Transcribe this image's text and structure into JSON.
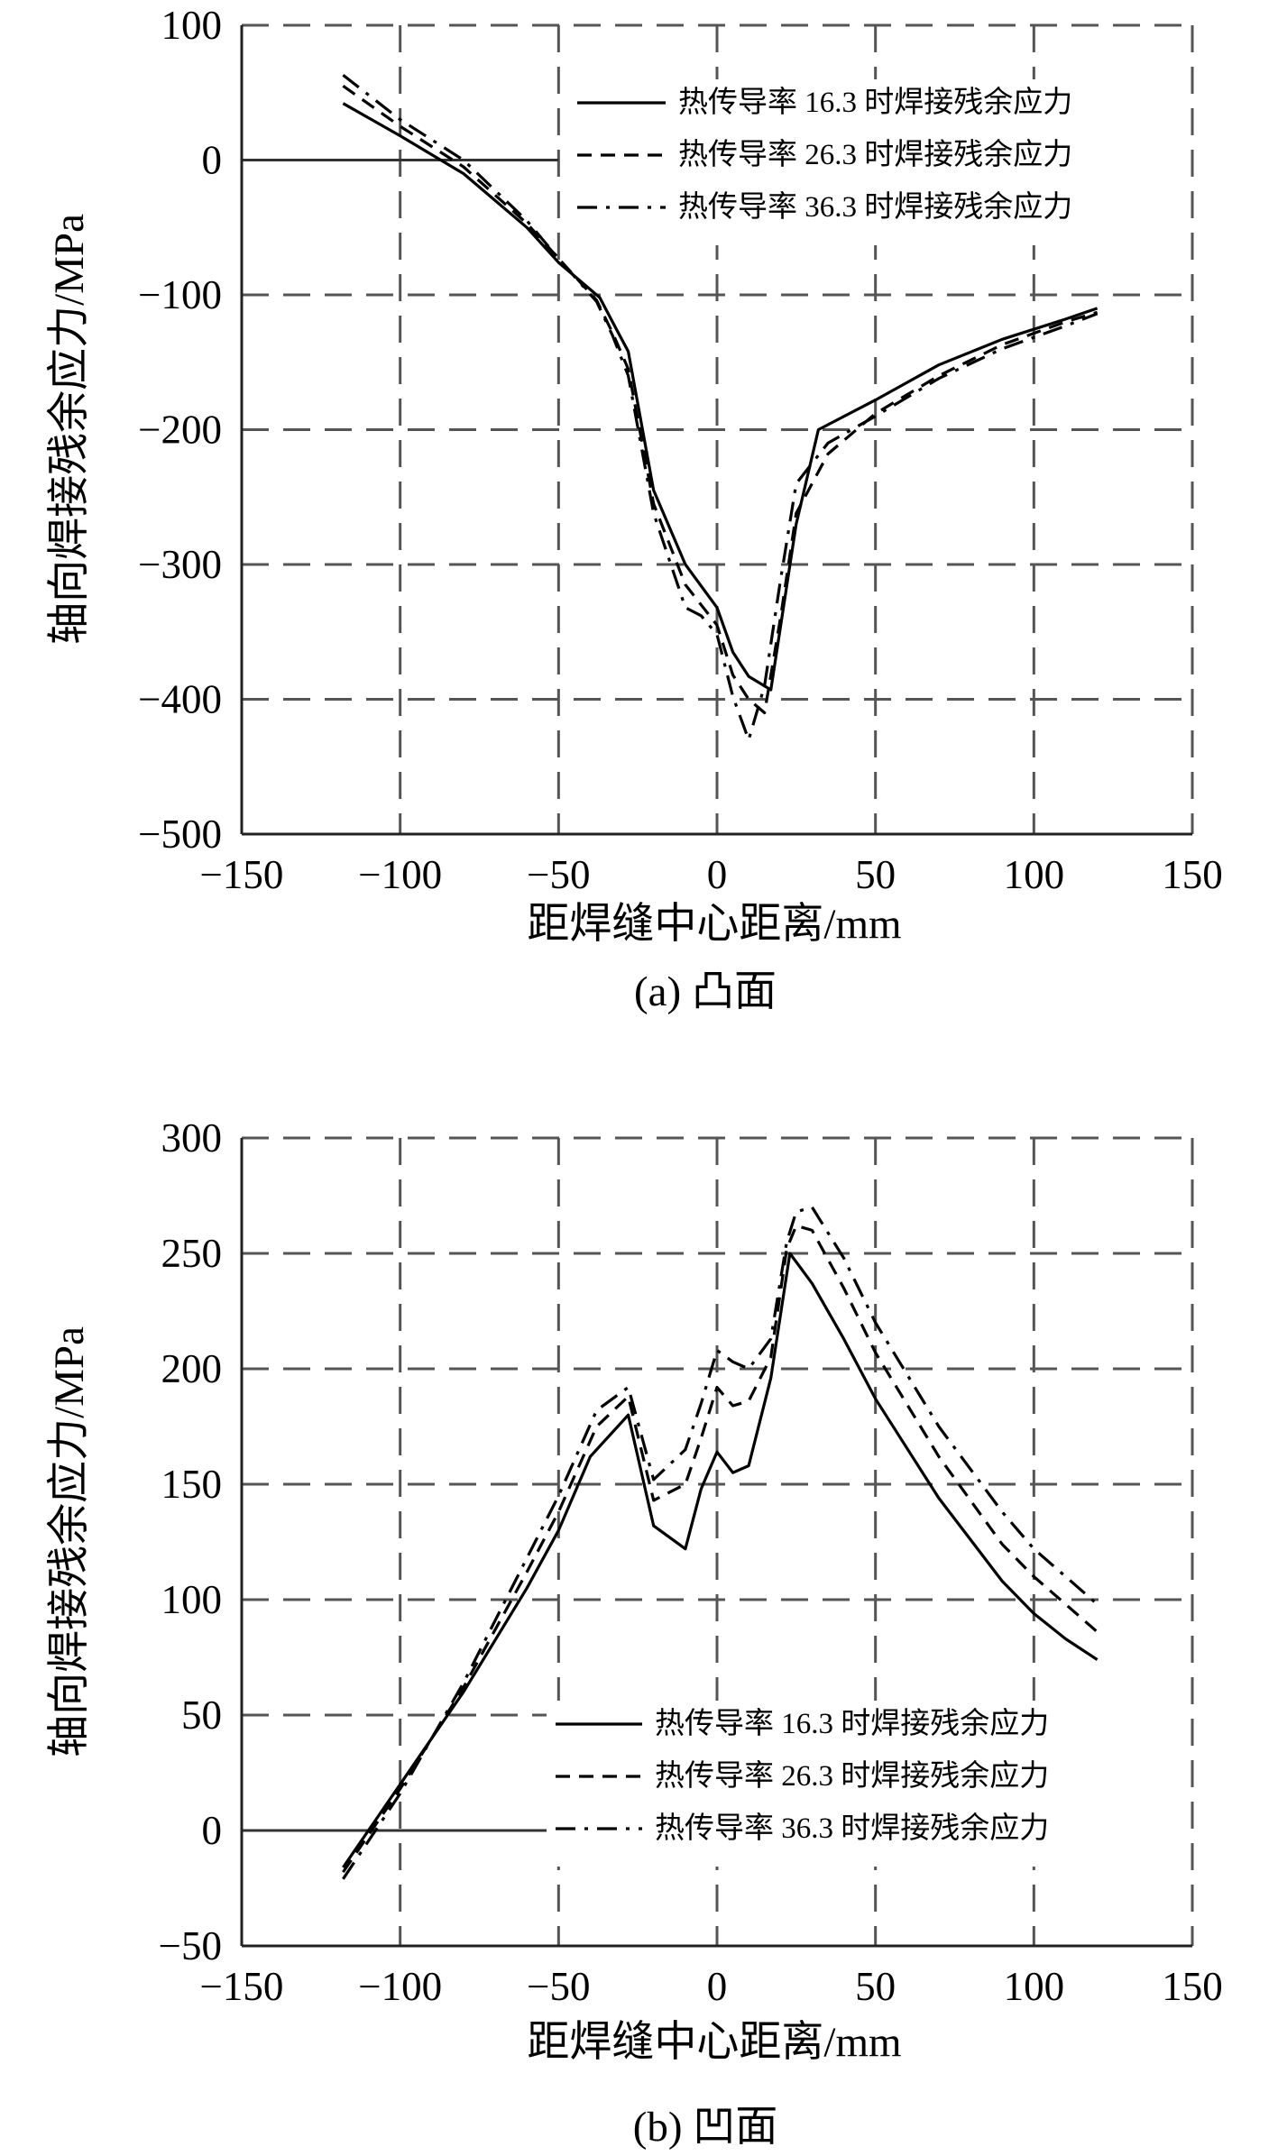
{
  "chart_data": [
    {
      "type": "line",
      "subcaption": "(a) 凸面",
      "xlabel": "距焊缝中心距离/mm",
      "ylabel": "轴向焊接残余应力/MPa",
      "xlim": [
        -150,
        150
      ],
      "ylim": [
        -500,
        100
      ],
      "xticks": [
        -150,
        -100,
        -50,
        0,
        50,
        100,
        150
      ],
      "yticks": [
        -500,
        -400,
        -300,
        -200,
        -100,
        0,
        100
      ],
      "xtick_labels": [
        "−150",
        "−100",
        "−50",
        "0",
        "50",
        "100",
        "150"
      ],
      "ytick_labels": [
        "−500",
        "−400",
        "−300",
        "−200",
        "−100",
        "0",
        "100"
      ],
      "grid": "dashed",
      "legend_position": "top-right",
      "series": [
        {
          "name": "热传导率 16.3 时焊接残余应力",
          "style": "solid",
          "x": [
            -118,
            -100,
            -80,
            -60,
            -50,
            -37,
            -33,
            -28,
            -20,
            -10,
            0,
            5,
            10,
            17,
            25,
            32,
            50,
            70,
            90,
            110,
            120
          ],
          "y": [
            42,
            18,
            -10,
            -50,
            -76,
            -102,
            -120,
            -142,
            -245,
            -300,
            -332,
            -365,
            -383,
            -393,
            -270,
            -200,
            -178,
            -152,
            -133,
            -118,
            -110
          ]
        },
        {
          "name": "热传导率 26.3 时焊接残余应力",
          "style": "dashed",
          "x": [
            -118,
            -100,
            -80,
            -60,
            -50,
            -38,
            -33,
            -28,
            -20,
            -10,
            0,
            5,
            10,
            15,
            20,
            25,
            35,
            50,
            70,
            90,
            110,
            120
          ],
          "y": [
            55,
            25,
            -5,
            -47,
            -73,
            -104,
            -128,
            -155,
            -255,
            -315,
            -345,
            -382,
            -400,
            -410,
            -340,
            -262,
            -218,
            -188,
            -160,
            -137,
            -120,
            -113
          ]
        },
        {
          "name": "热传导率 36.3 时焊接残余应力",
          "style": "dashdot",
          "x": [
            -118,
            -100,
            -80,
            -60,
            -50,
            -38,
            -33,
            -28,
            -20,
            -10,
            -5,
            0,
            5,
            10,
            15,
            20,
            25,
            35,
            50,
            70,
            90,
            110,
            120
          ],
          "y": [
            63,
            30,
            0,
            -45,
            -73,
            -105,
            -130,
            -160,
            -262,
            -332,
            -338,
            -352,
            -398,
            -430,
            -390,
            -312,
            -240,
            -210,
            -190,
            -162,
            -140,
            -123,
            -114
          ]
        }
      ]
    },
    {
      "type": "line",
      "subcaption": "(b) 凹面",
      "xlabel": "距焊缝中心距离/mm",
      "ylabel": "轴向焊接残余应力/MPa",
      "xlim": [
        -150,
        150
      ],
      "ylim": [
        -50,
        300
      ],
      "xticks": [
        -150,
        -100,
        -50,
        0,
        50,
        100,
        150
      ],
      "yticks": [
        -50,
        0,
        50,
        100,
        150,
        200,
        250,
        300
      ],
      "xtick_labels": [
        "−150",
        "−100",
        "−50",
        "0",
        "50",
        "100",
        "150"
      ],
      "ytick_labels": [
        "−50",
        "0",
        "50",
        "100",
        "150",
        "200",
        "250",
        "300"
      ],
      "grid": "dashed",
      "legend_position": "bottom-right",
      "series": [
        {
          "name": "热传导率 16.3 时焊接残余应力",
          "style": "solid",
          "x": [
            -118,
            -110,
            -100,
            -80,
            -60,
            -50,
            -40,
            -28,
            -20,
            -10,
            -5,
            0,
            5,
            10,
            17,
            23,
            30,
            40,
            50,
            70,
            90,
            100,
            110,
            120
          ],
          "y": [
            -16,
            0,
            20,
            60,
            105,
            130,
            162,
            180,
            132,
            122,
            148,
            164,
            155,
            158,
            196,
            250,
            237,
            213,
            187,
            144,
            108,
            94,
            83,
            74
          ]
        },
        {
          "name": "热传导率 26.3 时焊接残余应力",
          "style": "dashed",
          "x": [
            -118,
            -100,
            -80,
            -60,
            -50,
            -38,
            -28,
            -20,
            -10,
            -5,
            0,
            5,
            10,
            17,
            22,
            25,
            30,
            40,
            50,
            70,
            90,
            100,
            110,
            120
          ],
          "y": [
            -18,
            18,
            62,
            112,
            138,
            175,
            188,
            143,
            150,
            170,
            192,
            184,
            186,
            205,
            252,
            262,
            260,
            235,
            207,
            162,
            124,
            110,
            98,
            86
          ]
        },
        {
          "name": "热传导率 36.3 时焊接残余应力",
          "style": "dashdot",
          "x": [
            -118,
            -100,
            -80,
            -60,
            -50,
            -38,
            -28,
            -20,
            -10,
            -5,
            0,
            5,
            10,
            17,
            22,
            25,
            30,
            40,
            50,
            70,
            90,
            100,
            110,
            120
          ],
          "y": [
            -21,
            16,
            64,
            118,
            145,
            182,
            192,
            152,
            165,
            185,
            208,
            203,
            200,
            213,
            255,
            268,
            270,
            248,
            220,
            175,
            138,
            122,
            110,
            98
          ]
        }
      ]
    }
  ]
}
